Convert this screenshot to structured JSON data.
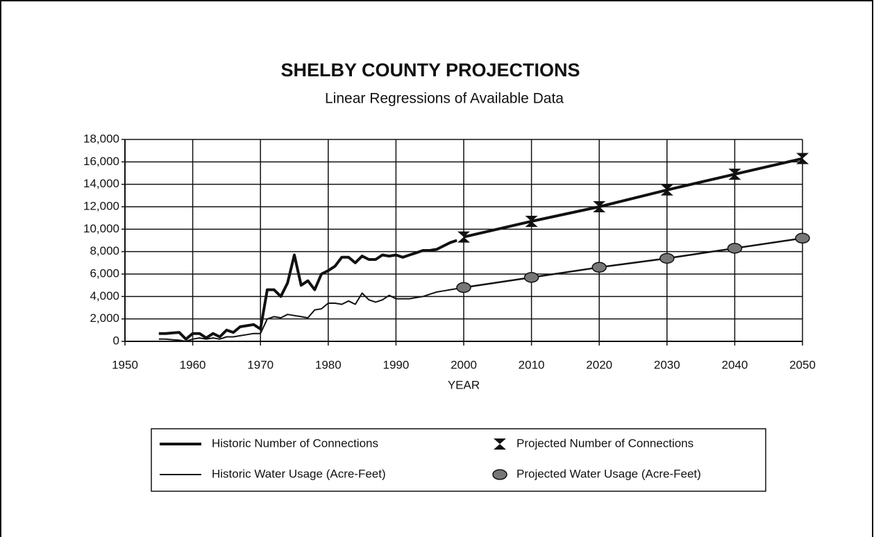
{
  "chart_data": {
    "type": "line",
    "title": "SHELBY COUNTY PROJECTIONS",
    "subtitle": "Linear Regressions of Available Data",
    "x_label": "YEAR",
    "xlim": [
      1950,
      2050
    ],
    "xticks": [
      1950,
      1960,
      1970,
      1980,
      1990,
      2000,
      2010,
      2020,
      2030,
      2040,
      2050
    ],
    "ylim": [
      0,
      18000
    ],
    "yticks": [
      0,
      {
        "value": 2000,
        "label": "2,000"
      },
      {
        "value": 4000,
        "label": "4,000"
      },
      {
        "value": 6000,
        "label": "6,000"
      },
      {
        "value": 8000,
        "label": "8,000"
      },
      {
        "value": 10000,
        "label": "10,000"
      },
      {
        "value": 12000,
        "label": "12,000"
      },
      {
        "value": 14000,
        "label": "14,000"
      },
      {
        "value": 16000,
        "label": "16,000"
      },
      {
        "value": 18000,
        "label": "18,000"
      }
    ],
    "grid": true,
    "legend": "bottom",
    "series": [
      {
        "name": "Historic Number of Connections",
        "color": "#111111",
        "line_width": 4,
        "marker": "none",
        "x": [
          1955,
          1956,
          1957,
          1958,
          1959,
          1960,
          1961,
          1962,
          1963,
          1964,
          1965,
          1966,
          1967,
          1968,
          1969,
          1970,
          1971,
          1972,
          1973,
          1974,
          1975,
          1976,
          1977,
          1978,
          1979,
          1980,
          1981,
          1982,
          1983,
          1984,
          1985,
          1986,
          1987,
          1988,
          1989,
          1990,
          1991,
          1992,
          1993,
          1994,
          1995,
          1996,
          1997,
          1998,
          1999
        ],
        "values": [
          700,
          700,
          750,
          800,
          200,
          700,
          700,
          300,
          700,
          400,
          1000,
          800,
          1300,
          1400,
          1500,
          1100,
          4600,
          4600,
          4000,
          5200,
          7700,
          5000,
          5400,
          4600,
          6000,
          6300,
          6700,
          7500,
          7500,
          7000,
          7600,
          7300,
          7300,
          7700,
          7600,
          7700,
          7500,
          7700,
          7900,
          8100,
          8100,
          8200,
          8500,
          8800,
          9000
        ]
      },
      {
        "name": "Historic Water Usage (Acre-Feet)",
        "color": "#111111",
        "line_width": 2,
        "marker": "none",
        "x": [
          1955,
          1956,
          1957,
          1958,
          1959,
          1960,
          1961,
          1962,
          1963,
          1964,
          1965,
          1966,
          1967,
          1968,
          1969,
          1970,
          1971,
          1972,
          1973,
          1974,
          1975,
          1976,
          1977,
          1978,
          1979,
          1980,
          1981,
          1982,
          1983,
          1984,
          1985,
          1986,
          1987,
          1988,
          1989,
          1990,
          1991,
          1992,
          1993,
          1994,
          1995,
          1996,
          1997,
          1998,
          1999
        ],
        "values": [
          200,
          200,
          150,
          100,
          0,
          200,
          300,
          200,
          300,
          200,
          400,
          400,
          500,
          600,
          700,
          700,
          2000,
          2200,
          2100,
          2400,
          2300,
          2200,
          2100,
          2800,
          2900,
          3400,
          3400,
          3300,
          3600,
          3300,
          4300,
          3700,
          3500,
          3700,
          4100,
          3800,
          3800,
          3800,
          3900,
          4000,
          4200,
          4400,
          4500,
          4600,
          4700
        ]
      },
      {
        "name": "Projected Number of Connections",
        "color": "#111111",
        "line_width": 4,
        "marker": "bowtie",
        "x": [
          2000,
          2010,
          2020,
          2030,
          2040,
          2050
        ],
        "values": [
          9300,
          10700,
          12000,
          13500,
          14900,
          16300
        ]
      },
      {
        "name": "Projected Water Usage (Acre-Feet)",
        "color": "#111111",
        "line_width": 2.5,
        "marker": "circle",
        "x": [
          2000,
          2010,
          2020,
          2030,
          2040,
          2050
        ],
        "values": [
          4800,
          5700,
          6600,
          7400,
          8300,
          9200
        ]
      }
    ]
  }
}
